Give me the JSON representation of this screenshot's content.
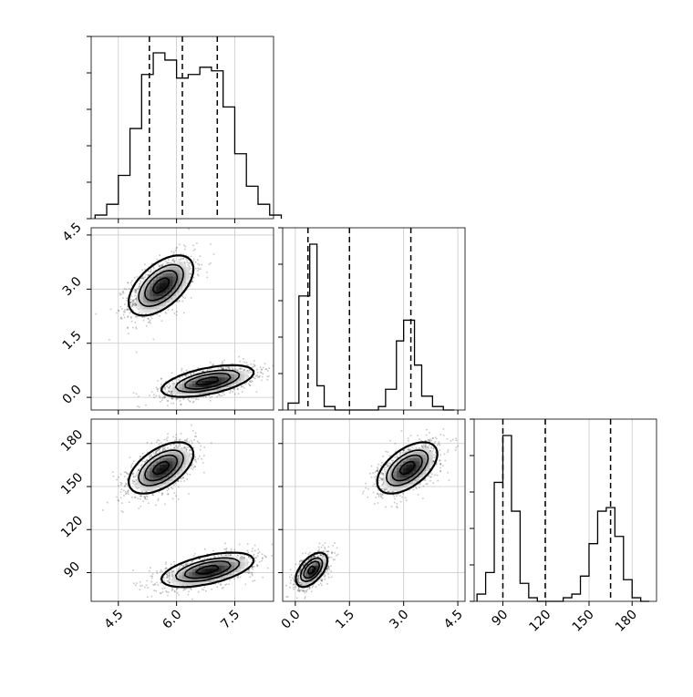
{
  "chart_data": {
    "type": "corner",
    "grid": true,
    "parameters": [
      {
        "id": "p1",
        "range": [
          3.8,
          8.5
        ],
        "ticks": [
          4.5,
          6.0,
          7.5
        ],
        "tick_labels": [
          "4.5",
          "6.0",
          "7.5"
        ],
        "quantiles": [
          5.3,
          6.15,
          7.05
        ],
        "histogram": {
          "bins": [
            3.9,
            4.2,
            4.5,
            4.8,
            5.1,
            5.4,
            5.7,
            6.0,
            6.3,
            6.6,
            6.9,
            7.2,
            7.5,
            7.8,
            8.1,
            8.4
          ],
          "counts": [
            1,
            4,
            12,
            25,
            40,
            46,
            44,
            39,
            40,
            42,
            41,
            31,
            18,
            9,
            4,
            1
          ]
        }
      },
      {
        "id": "p2",
        "range": [
          -0.35,
          4.7
        ],
        "ticks": [
          0.0,
          1.5,
          3.0,
          4.5
        ],
        "tick_labels": [
          "0.0",
          "1.5",
          "3.0",
          "4.5"
        ],
        "quantiles": [
          0.35,
          1.5,
          3.2
        ],
        "histogram": {
          "bins": [
            -0.2,
            0.1,
            0.4,
            0.6,
            0.8,
            1.1,
            1.4,
            2.0,
            2.3,
            2.5,
            2.8,
            3.0,
            3.3,
            3.5,
            3.8,
            4.1
          ],
          "counts": [
            2,
            33,
            48,
            7,
            1,
            0,
            0,
            0,
            1,
            6,
            20,
            26,
            13,
            4,
            1,
            0
          ]
        }
      },
      {
        "id": "p3",
        "range": [
          70,
          197
        ],
        "ticks": [
          90,
          120,
          150,
          180
        ],
        "tick_labels": [
          "90",
          "120",
          "150",
          "180"
        ],
        "quantiles": [
          90,
          119.5,
          165
        ],
        "histogram": {
          "bins": [
            72,
            78,
            84,
            90,
            96,
            102,
            108,
            114,
            120,
            126,
            132,
            138,
            144,
            150,
            156,
            162,
            168,
            174,
            180,
            186
          ],
          "counts": [
            2,
            8,
            33,
            46,
            25,
            5,
            1,
            0,
            0,
            0,
            1,
            2,
            7,
            16,
            25,
            26,
            18,
            6,
            1,
            0
          ]
        }
      }
    ],
    "clusters": [
      {
        "mean": [
          5.6,
          3.1,
          163
        ],
        "sd": [
          0.42,
          0.42,
          9
        ]
      },
      {
        "mean": [
          6.8,
          0.45,
          92
        ],
        "sd": [
          0.6,
          0.22,
          6
        ]
      }
    ]
  }
}
